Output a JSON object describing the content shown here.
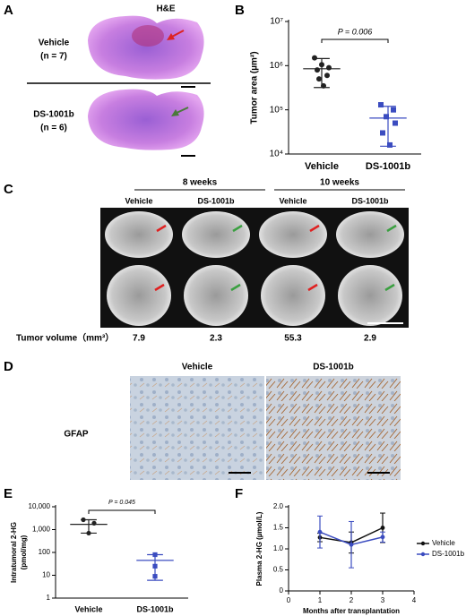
{
  "panel_a": {
    "label": "A",
    "stain": "H&E",
    "rows": [
      {
        "group": "Vehicle",
        "n": "(n = 7)"
      },
      {
        "group": "DS-1001b",
        "n": "(n = 6)"
      }
    ]
  },
  "panel_c": {
    "label": "C",
    "timepoints": [
      "8 weeks",
      "10 weeks"
    ],
    "columns": [
      "Vehicle",
      "DS-1001b",
      "Vehicle",
      "DS-1001b"
    ],
    "volume_label": "Tumor volume（mm³）",
    "volumes": [
      7.9,
      2.3,
      55.3,
      2.9
    ]
  },
  "panel_d": {
    "label": "D",
    "columns": [
      "Vehicle",
      "DS-1001b"
    ],
    "row_label": "GFAP"
  },
  "chart_data": [
    {
      "type": "scatter",
      "label": "B",
      "ylabel": [
        "Tumor area (µm²)"
      ],
      "log": true,
      "ylim": [
        10000,
        10000000
      ],
      "yticks": [
        {
          "value": 10000,
          "label": "10⁴"
        },
        {
          "value": 100000,
          "label": "10⁵"
        },
        {
          "value": 1000000,
          "label": "10⁶"
        },
        {
          "value": 10000000,
          "label": "10⁷"
        }
      ],
      "annotation": "P = 0.006",
      "groups": [
        {
          "category": "Vehicle",
          "color": "#222222",
          "marker": "circle",
          "values": [
            1500000,
            1050000,
            900000,
            800000,
            600000,
            500000,
            350000
          ],
          "mean": 850000,
          "error_low": 320000,
          "error_high": 1450000
        },
        {
          "category": "DS-1001b",
          "color": "#3b4cc0",
          "marker": "square",
          "values": [
            130000,
            100000,
            70000,
            50000,
            30000,
            16000
          ],
          "mean": 65000,
          "error_low": 15000,
          "error_high": 120000
        }
      ]
    },
    {
      "type": "scatter",
      "label": "E",
      "ylabel": [
        "Intratumoral 2-HG",
        "(pmol/mg)"
      ],
      "log": true,
      "ylim": [
        1,
        10000
      ],
      "yticks": [
        1,
        10,
        100,
        {
          "value": 1000,
          "label": "1,000"
        },
        {
          "value": 10000,
          "label": "10,000"
        }
      ],
      "annotation": "P = 0.045",
      "groups": [
        {
          "category": "Vehicle",
          "color": "#222222",
          "marker": "circle",
          "values": [
            2700,
            1900,
            700
          ],
          "mean": 1700,
          "error_low": 700,
          "error_high": 2700
        },
        {
          "category": "DS-1001b",
          "color": "#3b4cc0",
          "marker": "square",
          "values": [
            80,
            25,
            9
          ],
          "mean": 45,
          "error_low": 6,
          "error_high": 80
        }
      ]
    },
    {
      "type": "line",
      "label": "F",
      "ylabel": [
        "Plasma 2-HG (µmol/L)"
      ],
      "xlabel": "Months after transplantation",
      "x": [
        1,
        2,
        3
      ],
      "xlim": [
        0,
        4
      ],
      "xticks": [
        0,
        1,
        2,
        3,
        4
      ],
      "ylim": [
        0,
        2
      ],
      "yticks": [
        0,
        0.5,
        {
          "value": 1,
          "label": "1.0"
        },
        1.5,
        {
          "value": 2,
          "label": "2.0"
        }
      ],
      "legend": "right",
      "series": [
        {
          "name": "Vehicle",
          "color": "#111111",
          "values": [
            1.27,
            1.15,
            1.5
          ],
          "errors": [
            0.1,
            0.25,
            0.35
          ]
        },
        {
          "name": "DS-1001b",
          "color": "#3b4cc0",
          "values": [
            1.4,
            1.1,
            1.28
          ],
          "errors": [
            0.38,
            0.55,
            0.12
          ]
        }
      ]
    }
  ]
}
